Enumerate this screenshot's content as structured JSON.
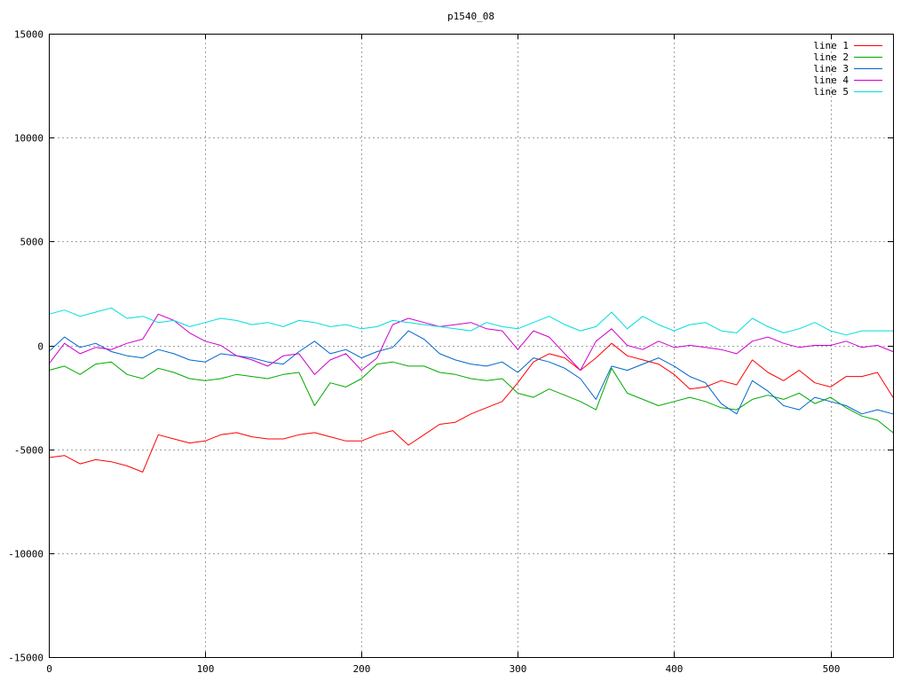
{
  "chart_data": {
    "type": "line",
    "title": "p1540_08",
    "xlabel": "",
    "ylabel": "",
    "xlim": [
      0,
      540
    ],
    "ylim": [
      -15000,
      15000
    ],
    "xticks": [
      0,
      100,
      200,
      300,
      400,
      500
    ],
    "yticks": [
      -15000,
      -10000,
      -5000,
      0,
      5000,
      10000,
      15000
    ],
    "grid": true,
    "legend_position": "top-right",
    "x": [
      0,
      10,
      20,
      30,
      40,
      50,
      60,
      70,
      80,
      90,
      100,
      110,
      120,
      130,
      140,
      150,
      160,
      170,
      180,
      190,
      200,
      210,
      220,
      230,
      240,
      250,
      260,
      270,
      280,
      290,
      300,
      310,
      320,
      330,
      340,
      350,
      360,
      370,
      380,
      390,
      400,
      410,
      420,
      430,
      440,
      450,
      460,
      470,
      480,
      490,
      500,
      510,
      520,
      530,
      540
    ],
    "series": [
      {
        "name": "line 1",
        "color": "#ff0000",
        "values": [
          -5400,
          -5300,
          -5700,
          -5500,
          -5600,
          -5800,
          -6100,
          -4300,
          -4500,
          -4700,
          -4600,
          -4300,
          -4200,
          -4400,
          -4500,
          -4500,
          -4300,
          -4200,
          -4400,
          -4600,
          -4600,
          -4300,
          -4100,
          -4800,
          -4300,
          -3800,
          -3700,
          -3300,
          -3000,
          -2700,
          -1800,
          -800,
          -400,
          -600,
          -1200,
          -600,
          100,
          -500,
          -700,
          -900,
          -1400,
          -2100,
          -2000,
          -1700,
          -1900,
          -700,
          -1300,
          -1700,
          -1200,
          -1800,
          -2000,
          -1500,
          -1500,
          -1300,
          -2500
        ]
      },
      {
        "name": "line 2",
        "color": "#00aa00",
        "values": [
          -1200,
          -1000,
          -1400,
          -900,
          -800,
          -1400,
          -1600,
          -1100,
          -1300,
          -1600,
          -1700,
          -1600,
          -1400,
          -1500,
          -1600,
          -1400,
          -1300,
          -2900,
          -1800,
          -2000,
          -1600,
          -900,
          -800,
          -1000,
          -1000,
          -1300,
          -1400,
          -1600,
          -1700,
          -1600,
          -2300,
          -2500,
          -2100,
          -2400,
          -2700,
          -3100,
          -1100,
          -2300,
          -2600,
          -2900,
          -2700,
          -2500,
          -2700,
          -3000,
          -3100,
          -2600,
          -2400,
          -2600,
          -2300,
          -2800,
          -2500,
          -3000,
          -3400,
          -3600,
          -4200
        ]
      },
      {
        "name": "line 3",
        "color": "#0066cc",
        "values": [
          -300,
          400,
          -100,
          100,
          -300,
          -500,
          -600,
          -200,
          -400,
          -700,
          -800,
          -400,
          -500,
          -600,
          -800,
          -900,
          -300,
          200,
          -400,
          -200,
          -600,
          -300,
          -100,
          700,
          300,
          -400,
          -700,
          -900,
          -1000,
          -800,
          -1300,
          -600,
          -800,
          -1100,
          -1600,
          -2600,
          -1000,
          -1200,
          -900,
          -600,
          -1000,
          -1500,
          -1800,
          -2800,
          -3300,
          -1700,
          -2200,
          -2900,
          -3100,
          -2500,
          -2700,
          -2900,
          -3300,
          -3100,
          -3300
        ]
      },
      {
        "name": "line 4",
        "color": "#cc00cc",
        "values": [
          -900,
          100,
          -400,
          -100,
          -200,
          100,
          300,
          1500,
          1200,
          600,
          200,
          0,
          -500,
          -700,
          -1000,
          -500,
          -400,
          -1400,
          -700,
          -400,
          -1200,
          -600,
          1000,
          1300,
          1100,
          900,
          1000,
          1100,
          800,
          700,
          -200,
          700,
          400,
          -400,
          -1200,
          200,
          800,
          0,
          -200,
          200,
          -100,
          0,
          -100,
          -200,
          -400,
          200,
          400,
          100,
          -100,
          0,
          0,
          200,
          -100,
          0,
          -300
        ]
      },
      {
        "name": "line 5",
        "color": "#00dddd",
        "values": [
          1500,
          1700,
          1400,
          1600,
          1800,
          1300,
          1400,
          1100,
          1200,
          900,
          1100,
          1300,
          1200,
          1000,
          1100,
          900,
          1200,
          1100,
          900,
          1000,
          800,
          900,
          1200,
          1100,
          1000,
          900,
          800,
          700,
          1100,
          900,
          800,
          1100,
          1400,
          1000,
          700,
          900,
          1600,
          800,
          1400,
          1000,
          700,
          1000,
          1100,
          700,
          600,
          1300,
          900,
          600,
          800,
          1100,
          700,
          500,
          700,
          700,
          700
        ]
      }
    ]
  }
}
